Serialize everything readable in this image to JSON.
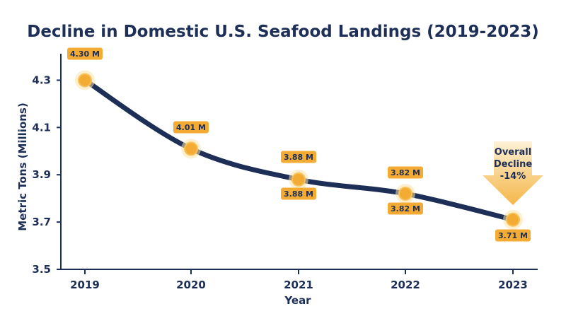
{
  "chart_data": {
    "type": "line",
    "title": "Decline in Domestic U.S. Seafood Landings (2019-2023)",
    "xlabel": "Year",
    "ylabel": "Metric Tons (Millions)",
    "categories": [
      "2019",
      "2020",
      "2021",
      "2022",
      "2023"
    ],
    "series": [
      {
        "values": [
          4.3,
          4.01,
          3.88,
          3.82,
          3.71
        ]
      }
    ],
    "data_labels": [
      "4.30 M",
      "4.01 M",
      "3.88 M",
      "3.82 M",
      "3.71 M"
    ],
    "duplicate_labels": [
      "3.88 M",
      "3.82 M"
    ],
    "ylim": [
      3.5,
      4.4
    ],
    "yticks": [
      "3.5",
      "3.7",
      "3.9",
      "4.1",
      "4.3"
    ],
    "ytick_values": [
      3.5,
      3.7,
      3.9,
      4.1,
      4.3
    ],
    "grid": false,
    "legend": "none",
    "annotation": {
      "lines": [
        "Overall",
        "Decline",
        "-14%"
      ]
    },
    "colors": {
      "line": "#1d2f57",
      "marker": "#f4ab33",
      "marker_stroke": "#f7c25c",
      "label_bg": "#f4ab33",
      "arrow": "#f9d27c",
      "text": "#1d2f57"
    }
  }
}
